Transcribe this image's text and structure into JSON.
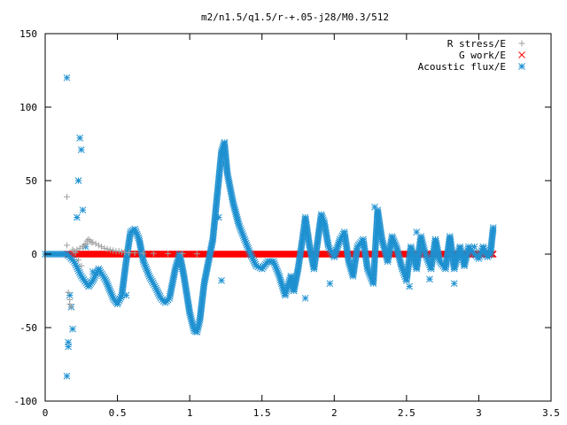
{
  "chart_data": {
    "type": "scatter",
    "title": "m2/n1.5/q1.5/r-+.05-j28/M0.3/512",
    "xlabel": "",
    "ylabel": "",
    "xlim": [
      0,
      3.5
    ],
    "ylim": [
      -100,
      150
    ],
    "grid": false,
    "legend_placement": "top-right",
    "x_ticks": [
      "0",
      "0.5",
      "1",
      "1.5",
      "2",
      "2.5",
      "3",
      "3.5"
    ],
    "y_ticks": [
      "-100",
      "-50",
      "0",
      "50",
      "100",
      "150"
    ],
    "x_tick_values": [
      0,
      0.5,
      1,
      1.5,
      2,
      2.5,
      3,
      3.5
    ],
    "y_tick_values": [
      -100,
      -50,
      0,
      50,
      100,
      150
    ],
    "series": [
      {
        "name": "R stress/E",
        "marker": "+",
        "color": "#a0a0a0",
        "points": [
          [
            0.15,
            39
          ],
          [
            0.15,
            6
          ],
          [
            0.16,
            -26
          ],
          [
            0.17,
            -31
          ],
          [
            0.17,
            -34
          ],
          [
            0.18,
            -36
          ],
          [
            0.19,
            3
          ],
          [
            0.2,
            2
          ],
          [
            0.21,
            1
          ],
          [
            0.22,
            3
          ],
          [
            0.23,
            -4
          ],
          [
            0.24,
            4
          ],
          [
            0.25,
            -8
          ],
          [
            0.26,
            5
          ],
          [
            0.27,
            6
          ],
          [
            0.28,
            7
          ],
          [
            0.29,
            9
          ],
          [
            0.3,
            10
          ],
          [
            0.31,
            9
          ],
          [
            0.32,
            8
          ],
          [
            0.33,
            8
          ],
          [
            0.35,
            7
          ],
          [
            0.37,
            6
          ],
          [
            0.39,
            5
          ],
          [
            0.41,
            4
          ],
          [
            0.43,
            3.5
          ],
          [
            0.45,
            3
          ],
          [
            0.47,
            2.5
          ],
          [
            0.49,
            2
          ],
          [
            0.51,
            2
          ],
          [
            0.53,
            1.5
          ],
          [
            0.55,
            1.2
          ],
          [
            0.58,
            1
          ],
          [
            0.62,
            0.8
          ],
          [
            0.68,
            0.6
          ],
          [
            0.75,
            0.5
          ],
          [
            0.85,
            0.4
          ],
          [
            0.95,
            0.3
          ],
          [
            1.05,
            0.2
          ]
        ]
      },
      {
        "name": "G work/E",
        "marker": "x",
        "color": "#ff0000",
        "x_start": 0.15,
        "x_end": 3.1,
        "y": 0
      },
      {
        "name": "Acoustic flux/E",
        "marker": "*",
        "color": "#1e90d0",
        "curve": [
          [
            0,
            0
          ],
          [
            0.15,
            0
          ],
          [
            0.2,
            -5
          ],
          [
            0.25,
            -15
          ],
          [
            0.3,
            -22
          ],
          [
            0.33,
            -18
          ],
          [
            0.37,
            -10
          ],
          [
            0.42,
            -18
          ],
          [
            0.47,
            -30
          ],
          [
            0.5,
            -34
          ],
          [
            0.53,
            -28
          ],
          [
            0.56,
            -5
          ],
          [
            0.59,
            15
          ],
          [
            0.62,
            17
          ],
          [
            0.65,
            10
          ],
          [
            0.68,
            -5
          ],
          [
            0.72,
            -15
          ],
          [
            0.76,
            -22
          ],
          [
            0.8,
            -30
          ],
          [
            0.83,
            -33
          ],
          [
            0.86,
            -30
          ],
          [
            0.9,
            -10
          ],
          [
            0.93,
            0
          ],
          [
            0.96,
            -15
          ],
          [
            1.0,
            -40
          ],
          [
            1.03,
            -52
          ],
          [
            1.05,
            -53
          ],
          [
            1.07,
            -45
          ],
          [
            1.1,
            -20
          ],
          [
            1.13,
            -5
          ],
          [
            1.16,
            10
          ],
          [
            1.19,
            40
          ],
          [
            1.22,
            70
          ],
          [
            1.24,
            76
          ],
          [
            1.26,
            55
          ],
          [
            1.3,
            35
          ],
          [
            1.34,
            20
          ],
          [
            1.38,
            10
          ],
          [
            1.42,
            0
          ],
          [
            1.46,
            -8
          ],
          [
            1.5,
            -10
          ],
          [
            1.54,
            -5
          ],
          [
            1.58,
            -5
          ],
          [
            1.62,
            -15
          ],
          [
            1.66,
            -28
          ],
          [
            1.7,
            -15
          ],
          [
            1.72,
            -25
          ],
          [
            1.75,
            -10
          ],
          [
            1.78,
            10
          ],
          [
            1.8,
            25
          ],
          [
            1.83,
            5
          ],
          [
            1.86,
            -10
          ],
          [
            1.88,
            5
          ],
          [
            1.91,
            27
          ],
          [
            1.93,
            22
          ],
          [
            1.96,
            5
          ],
          [
            2.0,
            -2
          ],
          [
            2.04,
            10
          ],
          [
            2.07,
            15
          ],
          [
            2.1,
            -5
          ],
          [
            2.13,
            -15
          ],
          [
            2.16,
            5
          ],
          [
            2.2,
            10
          ],
          [
            2.23,
            -10
          ],
          [
            2.27,
            -20
          ],
          [
            2.3,
            30
          ],
          [
            2.33,
            10
          ],
          [
            2.37,
            -5
          ],
          [
            2.4,
            12
          ],
          [
            2.43,
            5
          ],
          [
            2.47,
            -10
          ],
          [
            2.5,
            -18
          ],
          [
            2.53,
            5
          ],
          [
            2.57,
            -10
          ],
          [
            2.6,
            12
          ],
          [
            2.63,
            0
          ],
          [
            2.67,
            -10
          ],
          [
            2.7,
            10
          ],
          [
            2.73,
            -5
          ],
          [
            2.77,
            -10
          ],
          [
            2.8,
            12
          ],
          [
            2.83,
            -10
          ],
          [
            2.87,
            5
          ],
          [
            2.9,
            -8
          ],
          [
            2.93,
            5
          ],
          [
            2.97,
            0
          ],
          [
            3.0,
            -3
          ],
          [
            3.03,
            5
          ],
          [
            3.06,
            -2
          ],
          [
            3.08,
            0
          ],
          [
            3.1,
            18
          ]
        ],
        "outliers": [
          [
            0.15,
            120
          ],
          [
            0.15,
            -83
          ],
          [
            0.16,
            -63
          ],
          [
            0.16,
            -60
          ],
          [
            0.17,
            -28
          ],
          [
            0.18,
            -36
          ],
          [
            0.19,
            -51
          ],
          [
            0.22,
            25
          ],
          [
            0.23,
            50
          ],
          [
            0.24,
            79
          ],
          [
            0.25,
            71
          ],
          [
            0.26,
            30
          ],
          [
            0.28,
            5
          ],
          [
            0.33,
            -12
          ],
          [
            0.56,
            -28
          ],
          [
            1.2,
            25
          ],
          [
            1.22,
            -18
          ],
          [
            1.8,
            -30
          ],
          [
            1.97,
            -20
          ],
          [
            2.28,
            32
          ],
          [
            2.52,
            -22
          ],
          [
            2.57,
            15
          ],
          [
            2.66,
            -17
          ],
          [
            2.83,
            -20
          ],
          [
            2.97,
            5
          ]
        ]
      }
    ]
  }
}
